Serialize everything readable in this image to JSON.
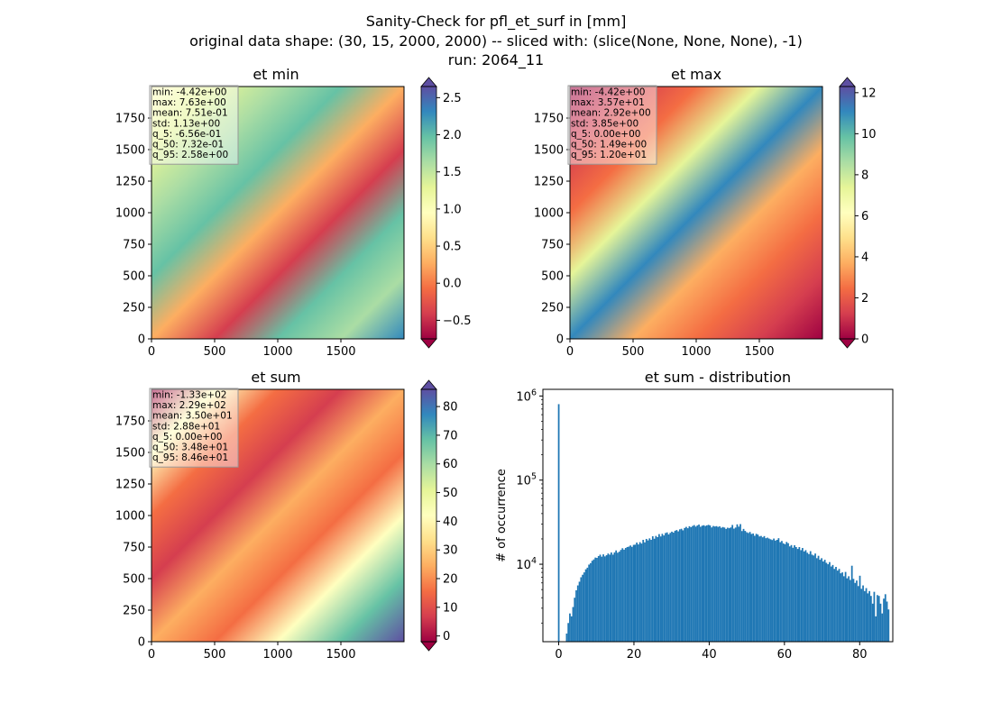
{
  "figure": {
    "title_lines": [
      "Sanity-Check for pfl_et_surf in [mm]",
      "original data shape: (30, 15, 2000, 2000) -- sliced with: (slice(None, None, None), -1)",
      "run: 2064_11"
    ]
  },
  "chart_data": [
    {
      "type": "heatmap",
      "title": "et min",
      "colormap": "Spectral",
      "colormap_stops": [
        "#9e0142",
        "#d53e4f",
        "#f46d43",
        "#fdae61",
        "#fee08b",
        "#ffffbf",
        "#e6f598",
        "#abdda4",
        "#66c2a5",
        "#3288bd",
        "#5e4fa2"
      ],
      "xlim": [
        0,
        2000
      ],
      "ylim": [
        0,
        2000
      ],
      "xticks": [
        "0",
        "500",
        "1000",
        "1500"
      ],
      "yticks": [
        "0",
        "250",
        "500",
        "750",
        "1000",
        "1250",
        "1500",
        "1750"
      ],
      "colorbar": {
        "range": [
          -0.75,
          2.65
        ],
        "ticks": [
          "−0.5",
          "0.0",
          "0.5",
          "1.0",
          "1.5",
          "2.0",
          "2.5"
        ],
        "extend": "both"
      },
      "stats": [
        "min: -4.42e+00",
        "max: 7.63e+00",
        "mean: 7.51e-01",
        "std: 1.13e+00",
        "q_5: -6.56e-01",
        "q_50: 7.32e-01",
        "q_95: 2.58e+00"
      ]
    },
    {
      "type": "heatmap",
      "title": "et max",
      "colormap": "Spectral",
      "colormap_stops": [
        "#9e0142",
        "#d53e4f",
        "#f46d43",
        "#fdae61",
        "#fee08b",
        "#ffffbf",
        "#e6f598",
        "#abdda4",
        "#66c2a5",
        "#3288bd",
        "#5e4fa2"
      ],
      "xlim": [
        0,
        2000
      ],
      "ylim": [
        0,
        2000
      ],
      "xticks": [
        "0",
        "500",
        "1000",
        "1500"
      ],
      "yticks": [
        "0",
        "250",
        "500",
        "750",
        "1000",
        "1250",
        "1500",
        "1750"
      ],
      "colorbar": {
        "range": [
          0,
          12.3
        ],
        "ticks": [
          "0",
          "2",
          "4",
          "6",
          "8",
          "10",
          "12"
        ],
        "extend": "both"
      },
      "stats": [
        "min: -4.42e+00",
        "max: 3.57e+01",
        "mean: 2.92e+00",
        "std: 3.85e+00",
        "q_5: 0.00e+00",
        "q_50: 1.49e+00",
        "q_95: 1.20e+01"
      ]
    },
    {
      "type": "heatmap",
      "title": "et sum",
      "colormap": "Spectral",
      "colormap_stops": [
        "#9e0142",
        "#d53e4f",
        "#f46d43",
        "#fdae61",
        "#fee08b",
        "#ffffbf",
        "#e6f598",
        "#abdda4",
        "#66c2a5",
        "#3288bd",
        "#5e4fa2"
      ],
      "xlim": [
        0,
        2000
      ],
      "ylim": [
        0,
        2000
      ],
      "xticks": [
        "0",
        "500",
        "1000",
        "1500"
      ],
      "yticks": [
        "0",
        "250",
        "500",
        "750",
        "1000",
        "1250",
        "1500",
        "1750"
      ],
      "colorbar": {
        "range": [
          -2,
          86
        ],
        "ticks": [
          "0",
          "10",
          "20",
          "30",
          "40",
          "50",
          "60",
          "70",
          "80"
        ],
        "extend": "both"
      },
      "stats": [
        "min: -1.33e+02",
        "max: 2.29e+02",
        "mean: 3.50e+01",
        "std: 2.88e+01",
        "q_5: 0.00e+00",
        "q_50: 3.48e+01",
        "q_95: 8.46e+01"
      ]
    },
    {
      "type": "bar",
      "title": "et sum - distribution",
      "ylabel": "# of occurrence",
      "xlabel": "",
      "yscale": "log",
      "color": "#1f77b4",
      "xlim": [
        -4.2,
        88.8
      ],
      "ylim": [
        1200,
        1200000
      ],
      "xticks": [
        0,
        20,
        40,
        60,
        80
      ],
      "yticks": [
        {
          "value": 10000,
          "base": "10",
          "exp": "4"
        },
        {
          "value": 100000,
          "base": "10",
          "exp": "5"
        },
        {
          "value": 1000000,
          "base": "10",
          "exp": "6"
        }
      ],
      "bin_start": -0.2,
      "bin_width": 0.4235,
      "values": [
        800000,
        20,
        20,
        20,
        20,
        1500,
        2000,
        2600,
        2400,
        3100,
        4000,
        4900,
        5600,
        6200,
        7000,
        7500,
        8000,
        8700,
        9100,
        9900,
        10300,
        11000,
        11400,
        12000,
        11900,
        12500,
        13000,
        12300,
        13100,
        12400,
        12800,
        13400,
        13000,
        13800,
        13000,
        13800,
        14600,
        13700,
        14100,
        14800,
        15500,
        14900,
        15600,
        16000,
        16200,
        16700,
        16100,
        17000,
        17100,
        18100,
        17200,
        18300,
        17600,
        19500,
        18200,
        20000,
        19200,
        20300,
        19500,
        21500,
        20100,
        21700,
        21000,
        22800,
        21400,
        23000,
        22000,
        23500,
        23900,
        22600,
        23600,
        24400,
        23800,
        25000,
        25500,
        24600,
        26000,
        26400,
        25300,
        27000,
        27800,
        26800,
        28300,
        27600,
        28500,
        29200,
        28000,
        28900,
        29600,
        27900,
        28700,
        29100,
        28500,
        29000,
        29400,
        28900,
        27400,
        28500,
        28100,
        28400,
        27800,
        28200,
        27100,
        27700,
        27300,
        26300,
        27200,
        26800,
        27400,
        29300,
        26500,
        27300,
        29800,
        28000,
        30000,
        24800,
        26300,
        24900,
        24000,
        23500,
        24200,
        22900,
        23200,
        21800,
        23000,
        22500,
        21400,
        21700,
        20900,
        21600,
        20400,
        20700,
        20200,
        19800,
        19400,
        20200,
        19100,
        19500,
        20400,
        18300,
        18900,
        17700,
        17300,
        18400,
        17800,
        16300,
        16900,
        15700,
        16800,
        16000,
        15200,
        16000,
        14700,
        15600,
        14200,
        14700,
        13700,
        13200,
        14300,
        13000,
        12700,
        13400,
        11800,
        12600,
        11300,
        11800,
        10800,
        11300,
        10400,
        10000,
        10600,
        9400,
        9800,
        8800,
        9300,
        8400,
        8800,
        7800,
        8000,
        7200,
        8100,
        6800,
        7200,
        6500,
        9600,
        6700,
        6000,
        6400,
        5500,
        7300,
        5100,
        5600,
        4800,
        5200,
        4500,
        4800,
        4200,
        3400,
        4700,
        2400,
        4300,
        4200,
        3400,
        2600,
        3900,
        4400,
        3600,
        2900
      ]
    }
  ]
}
